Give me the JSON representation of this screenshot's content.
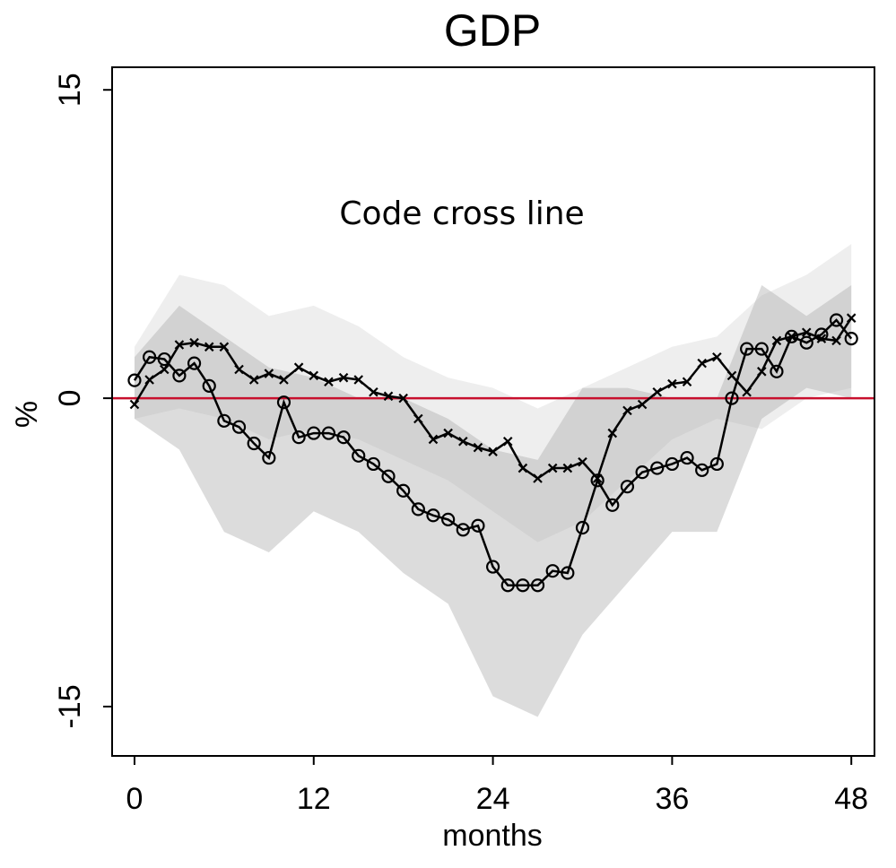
{
  "chart_data": {
    "type": "line",
    "title": "GDP",
    "annotation": "Code cross line",
    "xlabel": "months",
    "ylabel": "%",
    "x": [
      0,
      1,
      2,
      3,
      4,
      5,
      6,
      7,
      8,
      9,
      10,
      11,
      12,
      13,
      14,
      15,
      16,
      17,
      18,
      19,
      20,
      21,
      22,
      23,
      24,
      25,
      26,
      27,
      28,
      29,
      30,
      31,
      32,
      33,
      34,
      35,
      36,
      37,
      38,
      39,
      40,
      41,
      42,
      43,
      44,
      45,
      46,
      47,
      48
    ],
    "series": [
      {
        "marker": "o",
        "color": "#000000",
        "values": [
          0.87,
          2.0,
          1.9,
          1.1,
          1.7,
          0.6,
          -1.1,
          -1.4,
          -2.2,
          -2.9,
          -0.2,
          -1.9,
          -1.7,
          -1.7,
          -1.9,
          -2.8,
          -3.2,
          -3.8,
          -4.5,
          -5.4,
          -5.7,
          -5.9,
          -6.4,
          -6.2,
          -8.2,
          -9.1,
          -9.1,
          -9.1,
          -8.4,
          -8.5,
          -6.3,
          -4.0,
          -5.2,
          -4.3,
          -3.6,
          -3.4,
          -3.2,
          -2.9,
          -3.5,
          -3.2,
          0.0,
          2.4,
          2.4,
          1.3,
          3.0,
          2.7,
          3.1,
          3.8,
          2.9
        ]
      },
      {
        "marker": "x",
        "color": "#000000",
        "values": [
          -0.3,
          0.9,
          1.4,
          2.6,
          2.7,
          2.5,
          2.5,
          1.4,
          0.9,
          1.2,
          0.9,
          1.5,
          1.1,
          0.8,
          1.0,
          0.9,
          0.3,
          0.1,
          0.0,
          -1.0,
          -2.0,
          -1.7,
          -2.1,
          -2.4,
          -2.6,
          -2.1,
          -3.4,
          -3.9,
          -3.4,
          -3.4,
          -3.1,
          -3.9,
          -1.7,
          -0.6,
          -0.3,
          0.3,
          0.7,
          0.8,
          1.7,
          2.0,
          1.1,
          0.3,
          1.3,
          2.8,
          3.0,
          3.2,
          2.9,
          2.8,
          3.9
        ]
      }
    ],
    "bands": [
      {
        "color": "#c8c8c8",
        "opacity": 0.3,
        "x": [
          0,
          3,
          6,
          9,
          12,
          15,
          18,
          21,
          24,
          27,
          30,
          33,
          36,
          39,
          42,
          45,
          48
        ],
        "upper": [
          2.5,
          6.0,
          5.5,
          4.0,
          4.5,
          3.5,
          2.0,
          1.0,
          0.5,
          -0.5,
          0.5,
          1.5,
          2.5,
          3.0,
          5.0,
          6.0,
          7.5
        ],
        "lower": [
          -1.0,
          -0.5,
          -1.0,
          -2.0,
          -1.5,
          -2.0,
          -3.0,
          -4.0,
          -5.5,
          -7.0,
          -6.0,
          -4.0,
          -2.0,
          -1.0,
          -1.5,
          0.0,
          0.5
        ]
      },
      {
        "color": "#a8a8a8",
        "opacity": 0.4,
        "x": [
          0,
          3,
          6,
          9,
          12,
          15,
          18,
          21,
          24,
          27,
          30,
          33,
          36,
          39,
          42,
          45,
          48
        ],
        "upper": [
          2.0,
          4.5,
          3.0,
          1.5,
          1.0,
          0.0,
          0.0,
          -1.0,
          -2.5,
          -3.0,
          0.5,
          0.5,
          0.0,
          0.0,
          5.5,
          4.0,
          5.5
        ],
        "lower": [
          -1.0,
          -2.5,
          -6.5,
          -7.5,
          -5.5,
          -6.5,
          -8.5,
          -10.0,
          -14.5,
          -15.5,
          -11.5,
          -9.0,
          -6.5,
          -6.5,
          -1.0,
          0.5,
          0.0
        ]
      }
    ],
    "hline": {
      "value": 0,
      "color": "#c8102e"
    },
    "xlim": [
      -1.5,
      49.55
    ],
    "ylim": [
      -17.4,
      16.1
    ],
    "xticks": [
      0,
      12,
      24,
      36,
      48
    ],
    "yticks": [
      -15,
      0,
      15
    ]
  }
}
